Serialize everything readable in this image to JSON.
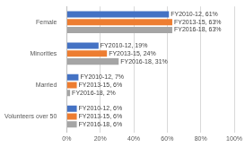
{
  "chart_data": {
    "type": "bar",
    "orientation": "horizontal",
    "categories": [
      "Female",
      "Minorities",
      "Married",
      "Volunteers over 50"
    ],
    "series": [
      {
        "name": "FY2010-12",
        "color": "#4472c4",
        "values": [
          61,
          19,
          7,
          6
        ],
        "value_labels": [
          "FY2010-12, 61%",
          "FY2010-12, 19%",
          "FY2010-12, 7%",
          "FY2010-12, 6%"
        ]
      },
      {
        "name": "FY2013-15",
        "color": "#ed7d31",
        "values": [
          63,
          24,
          6,
          6
        ],
        "value_labels": [
          "FY2013-15, 63%",
          "FY2013-15, 24%",
          "FY2013-15, 6%",
          "FY2013-15, 6%"
        ]
      },
      {
        "name": "FY2016-18",
        "color": "#a5a5a5",
        "values": [
          63,
          31,
          2,
          6
        ],
        "value_labels": [
          "FY2016-18, 63%",
          "FY2016-18, 31%",
          "FY2016-18, 2%",
          "FY2016-18, 6%"
        ]
      }
    ],
    "xlim": [
      0,
      100
    ],
    "xticks": [
      {
        "value": 0,
        "label": "0%"
      },
      {
        "value": 20,
        "label": "20%"
      },
      {
        "value": 40,
        "label": "40%"
      },
      {
        "value": 60,
        "label": "60%"
      },
      {
        "value": 80,
        "label": "80%"
      },
      {
        "value": 100,
        "label": "100%"
      }
    ],
    "grid": true,
    "data_labels": true
  }
}
